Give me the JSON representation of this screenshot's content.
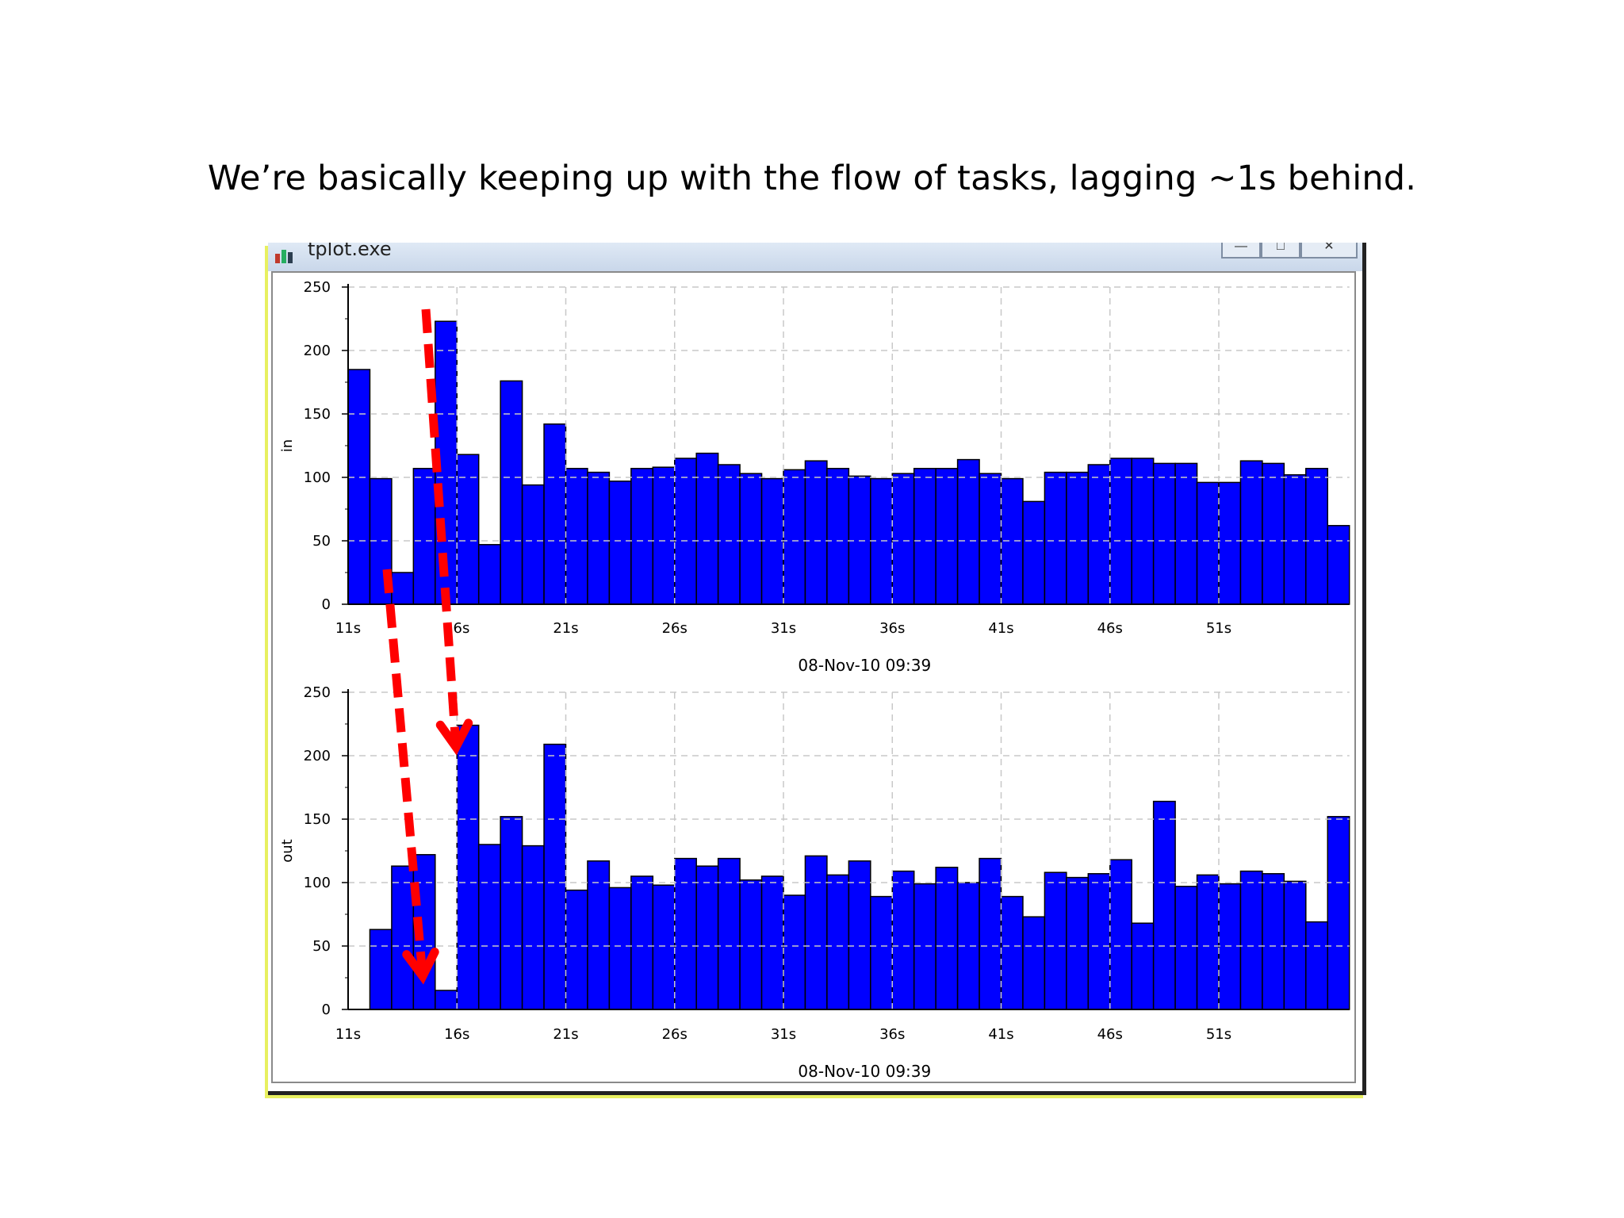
{
  "slide": {
    "title": "We’re basically keeping up with the flow of tasks, lagging ~1s behind."
  },
  "window": {
    "title": "tplot.exe",
    "icon": "chart-app-icon",
    "controls": [
      "minimize-icon",
      "maximize-icon",
      "close-icon"
    ]
  },
  "colors": {
    "bar": "#0000ff",
    "arrow": "#ff0000",
    "grid": "#c8c8c8"
  },
  "chart_data": [
    {
      "type": "bar",
      "ylabel": "in",
      "xlabel": "08-Nov-10 09:39",
      "ylim": [
        0,
        250
      ],
      "yticks": [
        0,
        50,
        100,
        150,
        200,
        250
      ],
      "xticks": [
        "11s",
        "16s",
        "21s",
        "26s",
        "31s",
        "36s",
        "41s",
        "46s",
        "51s"
      ],
      "x_start": 11,
      "x_step": 1,
      "grid": true,
      "values": [
        185,
        99,
        25,
        107,
        223,
        118,
        47,
        176,
        94,
        142,
        107,
        104,
        97,
        107,
        108,
        115,
        119,
        110,
        103,
        99,
        106,
        113,
        107,
        101,
        99,
        103,
        107,
        107,
        114,
        103,
        99,
        81,
        104,
        104,
        110,
        115,
        115,
        111,
        111,
        96,
        96,
        113,
        111,
        102,
        107,
        62
      ]
    },
    {
      "type": "bar",
      "ylabel": "out",
      "xlabel": "08-Nov-10 09:39",
      "ylim": [
        0,
        250
      ],
      "yticks": [
        0,
        50,
        100,
        150,
        200,
        250
      ],
      "xticks": [
        "11s",
        "16s",
        "21s",
        "26s",
        "31s",
        "36s",
        "41s",
        "46s",
        "51s"
      ],
      "x_start": 11,
      "x_step": 1,
      "grid": true,
      "values": [
        0,
        63,
        113,
        122,
        15,
        224,
        130,
        152,
        129,
        209,
        94,
        117,
        96,
        105,
        98,
        119,
        113,
        119,
        102,
        105,
        90,
        121,
        106,
        117,
        89,
        109,
        99,
        112,
        100,
        119,
        89,
        73,
        108,
        104,
        107,
        118,
        68,
        164,
        97,
        106,
        99,
        109,
        107,
        101,
        69,
        152
      ]
    }
  ]
}
